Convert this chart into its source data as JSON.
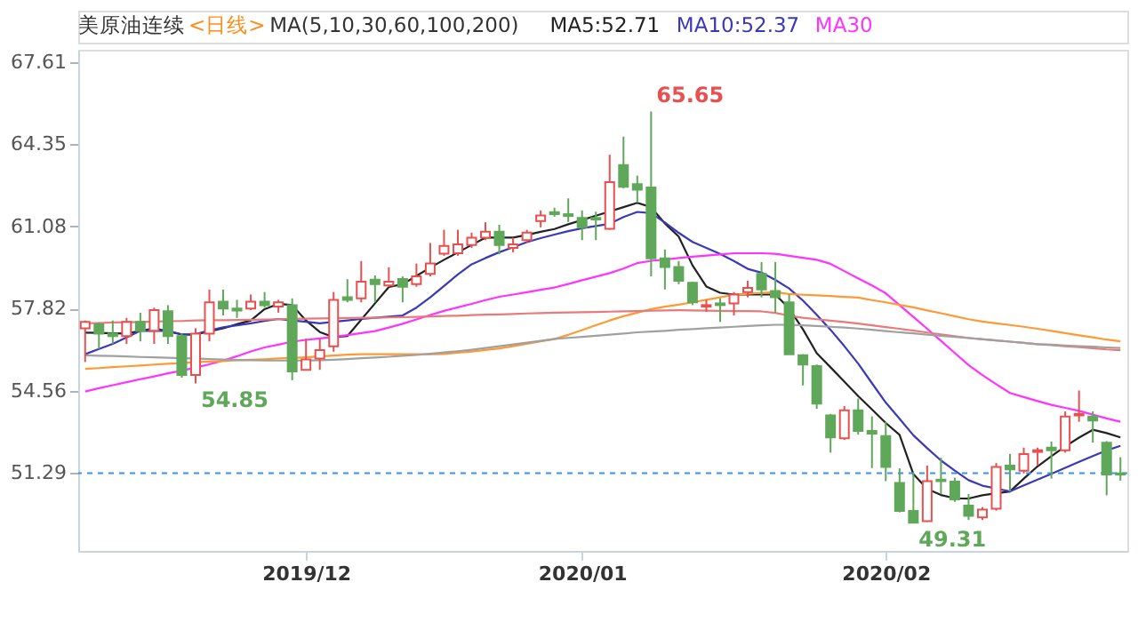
{
  "chart_data": {
    "type": "candlestick",
    "title": "美原油连续",
    "subtitle": "<日线>",
    "legend_title": "MA(5,10,30,60,100,200)",
    "legend": "top",
    "grid": false,
    "categories": [
      null,
      null,
      null,
      null,
      null,
      null,
      null,
      null,
      null,
      null,
      null,
      null,
      null,
      null,
      null,
      null,
      "2019/12",
      null,
      null,
      null,
      null,
      null,
      null,
      null,
      null,
      null,
      null,
      null,
      null,
      null,
      null,
      null,
      null,
      null,
      null,
      null,
      "2020/01",
      null,
      null,
      null,
      null,
      null,
      null,
      null,
      null,
      null,
      null,
      null,
      null,
      null,
      null,
      null,
      null,
      null,
      null,
      null,
      null,
      null,
      "2020/02",
      null,
      null,
      null,
      null,
      null,
      null,
      null,
      null,
      null,
      null,
      null,
      null,
      null,
      null,
      null,
      null,
      null
    ],
    "ohlc": [
      [
        57.04,
        57.35,
        55.7,
        57.29
      ],
      [
        57.2,
        57.28,
        56.22,
        56.83
      ],
      [
        56.83,
        57.35,
        56.42,
        56.73
      ],
      [
        56.73,
        57.45,
        56.42,
        57.29
      ],
      [
        57.29,
        57.66,
        56.52,
        56.94
      ],
      [
        56.94,
        57.86,
        56.42,
        57.76
      ],
      [
        57.72,
        57.96,
        56.42,
        56.73
      ],
      [
        56.73,
        56.83,
        55.08,
        55.19
      ],
      [
        55.19,
        57.04,
        54.85,
        56.83
      ],
      [
        56.83,
        58.58,
        56.52,
        58.07
      ],
      [
        58.1,
        58.58,
        57.55,
        57.82
      ],
      [
        57.82,
        58.17,
        57.45,
        57.74
      ],
      [
        57.82,
        58.38,
        57.76,
        58.1
      ],
      [
        58.1,
        58.48,
        57.86,
        57.96
      ],
      [
        57.9,
        58.17,
        57.66,
        58.07
      ],
      [
        57.96,
        58.23,
        54.98,
        55.33
      ],
      [
        55.39,
        56.63,
        55.39,
        55.8
      ],
      [
        55.84,
        56.63,
        55.39,
        56.17
      ],
      [
        56.32,
        58.48,
        56.11,
        58.17
      ],
      [
        58.27,
        58.99,
        58.07,
        58.17
      ],
      [
        58.23,
        59.71,
        58.07,
        58.89
      ],
      [
        58.97,
        59.14,
        58.07,
        58.79
      ],
      [
        58.74,
        59.46,
        58.68,
        58.89
      ],
      [
        59.0,
        59.1,
        58.07,
        58.69
      ],
      [
        58.79,
        59.61,
        58.69,
        59.1
      ],
      [
        59.2,
        60.43,
        59.1,
        59.61
      ],
      [
        60.0,
        60.95,
        59.92,
        60.31
      ],
      [
        60.02,
        60.95,
        59.92,
        60.37
      ],
      [
        60.35,
        60.84,
        60.23,
        60.64
      ],
      [
        60.64,
        61.25,
        60.54,
        60.88
      ],
      [
        60.88,
        61.15,
        59.98,
        60.35
      ],
      [
        60.23,
        60.64,
        60.06,
        60.37
      ],
      [
        60.54,
        60.95,
        60.44,
        60.84
      ],
      [
        61.3,
        61.72,
        61.05,
        61.52
      ],
      [
        61.65,
        61.83,
        61.47,
        61.57
      ],
      [
        61.57,
        62.2,
        61.26,
        61.5
      ],
      [
        61.42,
        61.72,
        60.54,
        61.05
      ],
      [
        61.42,
        61.67,
        60.54,
        61.36
      ],
      [
        60.99,
        63.93,
        60.95,
        62.84
      ],
      [
        63.52,
        64.65,
        62.6,
        62.66
      ],
      [
        62.76,
        63.1,
        62.03,
        62.54
      ],
      [
        62.63,
        65.65,
        59.1,
        59.82
      ],
      [
        59.82,
        60.17,
        58.58,
        59.47
      ],
      [
        59.47,
        59.71,
        58.79,
        58.93
      ],
      [
        58.85,
        58.89,
        57.96,
        58.07
      ],
      [
        57.9,
        58.17,
        57.7,
        57.96
      ],
      [
        58.03,
        58.23,
        57.29,
        57.96
      ],
      [
        58.03,
        58.48,
        57.55,
        58.38
      ],
      [
        58.48,
        58.93,
        58.27,
        58.64
      ],
      [
        59.2,
        59.67,
        58.27,
        58.58
      ],
      [
        58.52,
        59.67,
        57.66,
        58.27
      ],
      [
        58.07,
        58.38,
        56.0,
        56.01
      ],
      [
        55.97,
        56.01,
        54.77,
        55.6
      ],
      [
        55.54,
        55.6,
        53.84,
        54.05
      ],
      [
        53.58,
        53.64,
        52.1,
        52.71
      ],
      [
        52.67,
        53.95,
        52.61,
        53.78
      ],
      [
        53.78,
        54.25,
        52.82,
        52.96
      ],
      [
        52.96,
        53.54,
        51.49,
        52.86
      ],
      [
        52.76,
        53.33,
        50.97,
        51.53
      ],
      [
        50.9,
        51.48,
        49.73,
        49.79
      ],
      [
        49.79,
        51.28,
        49.31,
        49.32
      ],
      [
        49.38,
        51.59,
        49.35,
        50.97
      ],
      [
        51.03,
        51.9,
        50.46,
        50.97
      ],
      [
        50.95,
        51.11,
        50.15,
        50.25
      ],
      [
        50.0,
        50.46,
        49.43,
        49.59
      ],
      [
        49.53,
        49.94,
        49.43,
        49.84
      ],
      [
        49.88,
        51.69,
        49.8,
        51.53
      ],
      [
        51.59,
        52.05,
        50.56,
        51.44
      ],
      [
        51.38,
        52.3,
        51.28,
        52.05
      ],
      [
        52.13,
        52.3,
        51.59,
        52.2
      ],
      [
        52.3,
        52.54,
        51.07,
        52.2
      ],
      [
        52.2,
        53.74,
        52.1,
        53.54
      ],
      [
        53.58,
        54.57,
        53.33,
        53.64
      ],
      [
        53.54,
        53.74,
        52.5,
        53.38
      ],
      [
        52.5,
        52.56,
        50.41,
        51.23
      ],
      [
        51.28,
        51.92,
        50.99,
        51.23
      ]
    ],
    "colors": [
      "#e8504f",
      "#5fa85a",
      "#5fa85a",
      "#e8504f",
      "#5fa85a",
      "#e8504f",
      "#5fa85a",
      "#5fa85a",
      "#e8504f",
      "#e8504f",
      "#5fa85a",
      "#5fa85a",
      "#e8504f",
      "#5fa85a",
      "#e8504f",
      "#5fa85a",
      "#e8504f",
      "#e8504f",
      "#e8504f",
      "#5fa85a",
      "#e8504f",
      "#5fa85a",
      "#e8504f",
      "#5fa85a",
      "#e8504f",
      "#e8504f",
      "#e8504f",
      "#e8504f",
      "#e8504f",
      "#e8504f",
      "#5fa85a",
      "#e8504f",
      "#e8504f",
      "#e8504f",
      "#5fa85a",
      "#5fa85a",
      "#5fa85a",
      "#5fa85a",
      "#e8504f",
      "#5fa85a",
      "#5fa85a",
      "#5fa85a",
      "#5fa85a",
      "#5fa85a",
      "#5fa85a",
      "#e8504f",
      "#5fa85a",
      "#e8504f",
      "#e8504f",
      "#5fa85a",
      "#5fa85a",
      "#5fa85a",
      "#5fa85a",
      "#5fa85a",
      "#5fa85a",
      "#e8504f",
      "#5fa85a",
      "#5fa85a",
      "#5fa85a",
      "#5fa85a",
      "#5fa85a",
      "#e8504f",
      "#5fa85a",
      "#5fa85a",
      "#5fa85a",
      "#e8504f",
      "#e8504f",
      "#5fa85a",
      "#e8504f",
      "#e8504f",
      "#5fa85a",
      "#e8504f",
      "#e8504f",
      "#5fa85a",
      "#5fa85a",
      "#5fa85a"
    ],
    "series": [
      {
        "name": "MA5:52.71",
        "type": "line",
        "color": "#222222",
        "values": [
          56.87,
          56.86,
          56.84,
          56.83,
          56.94,
          57.04,
          56.92,
          56.79,
          56.79,
          56.92,
          57.04,
          57.2,
          57.35,
          57.8,
          58.01,
          57.96,
          57.35,
          56.89,
          56.69,
          56.73,
          57.38,
          58.03,
          58.68,
          58.79,
          59.12,
          59.45,
          59.76,
          60.05,
          60.35,
          60.64,
          60.64,
          60.64,
          60.75,
          60.87,
          60.98,
          61.17,
          61.34,
          61.51,
          61.68,
          61.85,
          62.02,
          61.85,
          61.2,
          60.68,
          59.54,
          58.7,
          58.45,
          58.38,
          58.38,
          58.38,
          58.38,
          57.83,
          57.0,
          56.05,
          55.49,
          54.92,
          54.35,
          53.82,
          53.28,
          52.81,
          51.25,
          50.66,
          50.42,
          50.29,
          50.28,
          50.41,
          50.49,
          50.56,
          51.07,
          51.56,
          51.96,
          52.35,
          52.7,
          53.01,
          52.88,
          52.71
        ]
      },
      {
        "name": "MA10:52.37",
        "type": "line",
        "color": "#3a3ab8",
        "values": [
          56.01,
          56.22,
          56.42,
          56.68,
          56.94,
          56.94,
          56.94,
          56.8,
          56.81,
          56.96,
          57.08,
          57.16,
          57.24,
          57.33,
          57.41,
          57.35,
          57.3,
          57.24,
          57.3,
          57.35,
          57.41,
          57.46,
          57.5,
          57.55,
          57.86,
          58.27,
          58.72,
          59.18,
          59.58,
          59.83,
          60.06,
          60.26,
          60.46,
          60.62,
          60.76,
          60.9,
          61.01,
          61.1,
          61.19,
          61.46,
          61.66,
          61.61,
          61.24,
          60.83,
          60.47,
          60.23,
          59.99,
          59.71,
          59.4,
          59.25,
          58.96,
          58.62,
          58.14,
          57.58,
          56.98,
          56.33,
          55.64,
          54.86,
          54.09,
          53.45,
          52.79,
          52.28,
          51.79,
          51.39,
          51.01,
          50.79,
          50.68,
          50.56,
          50.8,
          51.03,
          51.26,
          51.5,
          51.74,
          51.97,
          52.19,
          52.37
        ]
      },
      {
        "name": "MA30",
        "type": "line",
        "color": "#ff33ff",
        "values": [
          54.53,
          54.66,
          54.78,
          54.9,
          55.02,
          55.13,
          55.25,
          55.36,
          55.48,
          55.61,
          55.76,
          55.93,
          56.12,
          56.28,
          56.39,
          56.51,
          56.58,
          56.64,
          56.7,
          56.77,
          56.85,
          56.93,
          57.07,
          57.22,
          57.39,
          57.57,
          57.73,
          57.87,
          58.01,
          58.16,
          58.29,
          58.38,
          58.47,
          58.57,
          58.66,
          58.8,
          58.95,
          59.09,
          59.23,
          59.41,
          59.63,
          59.72,
          59.77,
          59.83,
          59.88,
          59.93,
          59.97,
          60.02,
          60.02,
          60.02,
          60.0,
          59.92,
          59.84,
          59.76,
          59.6,
          59.31,
          59.02,
          58.74,
          58.43,
          57.96,
          57.49,
          57.02,
          56.54,
          56.06,
          55.58,
          55.18,
          54.82,
          54.47,
          54.31,
          54.15,
          54.0,
          53.88,
          53.76,
          53.61,
          53.46,
          53.33
        ]
      },
      {
        "type": "line",
        "color": "#ff9933",
        "values": [
          55.43,
          55.46,
          55.5,
          55.53,
          55.56,
          55.6,
          55.63,
          55.66,
          55.69,
          55.72,
          55.74,
          55.77,
          55.79,
          55.81,
          55.84,
          55.86,
          55.89,
          55.92,
          55.96,
          55.99,
          56.01,
          56.01,
          56.01,
          56.01,
          56.01,
          56.01,
          56.02,
          56.07,
          56.12,
          56.18,
          56.24,
          56.33,
          56.42,
          56.52,
          56.61,
          56.78,
          56.97,
          57.16,
          57.35,
          57.52,
          57.66,
          57.8,
          57.9,
          57.98,
          58.07,
          58.17,
          58.27,
          58.37,
          58.41,
          58.45,
          58.47,
          58.4,
          58.37,
          58.35,
          58.32,
          58.29,
          58.26,
          58.16,
          58.07,
          57.97,
          57.87,
          57.75,
          57.64,
          57.52,
          57.4,
          57.31,
          57.24,
          57.17,
          57.1,
          57.02,
          56.94,
          56.85,
          56.76,
          56.68,
          56.59,
          56.52
        ]
      },
      {
        "type": "line",
        "color": "#e87a7a",
        "values": [
          57.24,
          57.25,
          57.27,
          57.28,
          57.29,
          57.31,
          57.32,
          57.33,
          57.35,
          57.36,
          57.36,
          57.37,
          57.38,
          57.39,
          57.4,
          57.41,
          57.42,
          57.43,
          57.44,
          57.45,
          57.46,
          57.46,
          57.47,
          57.48,
          57.49,
          57.51,
          57.53,
          57.54,
          57.56,
          57.58,
          57.59,
          57.61,
          57.63,
          57.64,
          57.66,
          57.67,
          57.68,
          57.69,
          57.7,
          57.71,
          57.72,
          57.74,
          57.75,
          57.76,
          57.75,
          57.74,
          57.73,
          57.72,
          57.72,
          57.71,
          57.65,
          57.54,
          57.46,
          57.4,
          57.34,
          57.29,
          57.23,
          57.16,
          57.09,
          57.02,
          56.95,
          56.87,
          56.8,
          56.73,
          56.66,
          56.6,
          56.56,
          56.51,
          56.46,
          56.41,
          56.37,
          56.33,
          56.29,
          56.25,
          56.2,
          56.17
        ]
      },
      {
        "type": "line",
        "color": "#a0a0a0",
        "values": [
          55.97,
          55.95,
          55.94,
          55.92,
          55.9,
          55.89,
          55.87,
          55.85,
          55.84,
          55.82,
          55.8,
          55.78,
          55.77,
          55.76,
          55.76,
          55.76,
          55.76,
          55.77,
          55.79,
          55.82,
          55.85,
          55.88,
          55.91,
          55.95,
          55.98,
          56.03,
          56.08,
          56.13,
          56.19,
          56.26,
          56.33,
          56.4,
          56.47,
          56.54,
          56.62,
          56.66,
          56.7,
          56.74,
          56.79,
          56.83,
          56.88,
          56.91,
          56.94,
          56.98,
          57.01,
          57.04,
          57.07,
          57.1,
          57.13,
          57.16,
          57.18,
          57.18,
          57.16,
          57.13,
          57.1,
          57.07,
          57.03,
          56.98,
          56.93,
          56.88,
          56.84,
          56.79,
          56.74,
          56.7,
          56.65,
          56.61,
          56.56,
          56.51,
          56.46,
          56.41,
          56.39,
          56.36,
          56.33,
          56.31,
          56.28,
          56.26
        ]
      }
    ],
    "ylim": [
      48.2,
      68.1
    ],
    "yticks": [
      67.61,
      64.35,
      61.08,
      57.82,
      54.56,
      51.29
    ],
    "ref_lines": [
      {
        "axis": "y",
        "value": 51.29,
        "color": "#3d8ff0",
        "line_style": "dashed"
      }
    ],
    "annotations": [
      "65.65",
      "54.85",
      "49.31"
    ]
  }
}
